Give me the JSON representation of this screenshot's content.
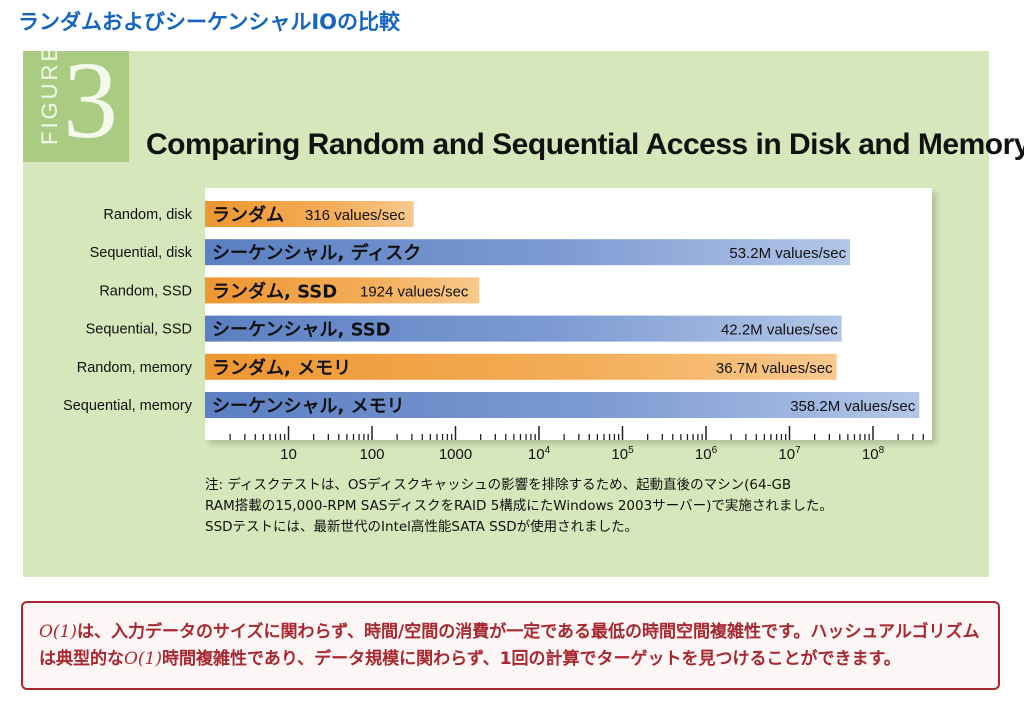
{
  "slide": {
    "title": "ランダムおよびシーケンシャルIOの比較"
  },
  "figure": {
    "badge_word": "FIGURE",
    "badge_number": "3",
    "title": "Comparing Random and Sequential Access in Disk and Memory"
  },
  "colors": {
    "panel": "#d6e8bb",
    "badge": "#a9cc82",
    "random": "#f0a03c",
    "sequential": "#6b8cc8",
    "slide_title": "#1565c0",
    "callout": "#a8282f"
  },
  "chart_data": {
    "type": "bar",
    "orientation": "horizontal",
    "x_scale": "log",
    "xlim": [
      1,
      1000000000
    ],
    "x_tick_labels": [
      "10",
      "100",
      "1000",
      "10^4",
      "10^5",
      "10^6",
      "10^7",
      "10^8"
    ],
    "grid": false,
    "bars": [
      {
        "category": "Random, disk",
        "label": "ランダム",
        "value": 316,
        "value_label": "316 values/sec",
        "kind": "random"
      },
      {
        "category": "Sequential, disk",
        "label": "シーケンシャル, ディスク",
        "value": 53200000,
        "value_label": "53.2M values/sec",
        "kind": "sequential"
      },
      {
        "category": "Random, SSD",
        "label": "ランダム, SSD",
        "value": 1924,
        "value_label": "1924 values/sec",
        "kind": "random"
      },
      {
        "category": "Sequential, SSD",
        "label": "シーケンシャル, SSD",
        "value": 42200000,
        "value_label": "42.2M values/sec",
        "kind": "sequential"
      },
      {
        "category": "Random, memory",
        "label": "ランダム, メモリ",
        "value": 36700000,
        "value_label": "36.7M values/sec",
        "kind": "random"
      },
      {
        "category": "Sequential, memory",
        "label": "シーケンシャル, メモリ",
        "value": 358200000,
        "value_label": "358.2M values/sec",
        "kind": "sequential"
      }
    ]
  },
  "note": {
    "line1": "注: ディスクテストは、OSディスクキャッシュの影響を排除するため、起動直後のマシン(64-GB",
    "line2": "RAM搭載の15,000-RPM SASディスクをRAID 5構成にたWindows 2003サーバー)で実施されました。",
    "line3": "SSDテストには、最新世代のIntel高性能SATA SSDが使用されました。"
  },
  "callout": {
    "math1": "O(1)",
    "part1": "は、入力データのサイズに関わらず、時間/空間の消費が一定である最低の時間空間複雑性です。ハッシュアルゴリズムは典型的な",
    "math2": "O(1)",
    "part2": "時間複雑性であり、データ規模に関わらず、1回の計算でターゲットを見つけることができます。"
  }
}
